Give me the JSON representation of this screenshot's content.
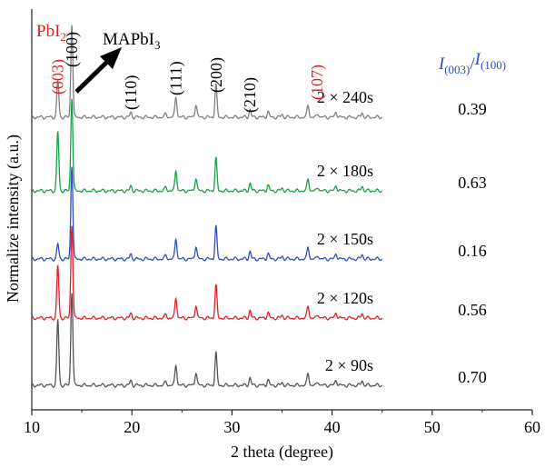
{
  "chart_data": {
    "type": "line",
    "xlabel": "2 theta (degree)",
    "ylabel": "Normalize intensity (a.u.)",
    "xlim": [
      10,
      60
    ],
    "xticks": [
      10,
      20,
      30,
      40,
      50,
      60
    ],
    "grid": false,
    "ratio_header": {
      "num": "I",
      "num_sub": "(003)",
      "den": "I",
      "den_sub": "(100)"
    },
    "pbi2_label": {
      "base": "PbI",
      "sub": "2"
    },
    "mapbi3_label": {
      "base": "MAPbI",
      "sub": "3"
    },
    "peak_labels": [
      {
        "label": "(003)",
        "x": 12.6,
        "color": "#e02020"
      },
      {
        "label": "(100)",
        "x": 14.0,
        "color": "#000000"
      },
      {
        "label": "(110)",
        "x": 19.9,
        "color": "#000000"
      },
      {
        "label": "(111)",
        "x": 24.4,
        "color": "#000000"
      },
      {
        "label": "(200)",
        "x": 28.4,
        "color": "#000000"
      },
      {
        "label": "(210)",
        "x": 31.8,
        "color": "#000000"
      },
      {
        "label": "(107)",
        "x": 38.5,
        "color": "#e02020"
      }
    ],
    "series": [
      {
        "name": "2 × 240s",
        "ratio": "0.39",
        "color": "#808080",
        "pbi2_peak": 0.39,
        "mapbi3_peak": 1.0
      },
      {
        "name": "2 × 180s",
        "ratio": "0.63",
        "color": "#1aa04a",
        "pbi2_peak": 0.63,
        "mapbi3_peak": 1.0
      },
      {
        "name": "2 × 150s",
        "ratio": "0.16",
        "color": "#2f4fc0",
        "pbi2_peak": 0.16,
        "mapbi3_peak": 1.0
      },
      {
        "name": "2 × 120s",
        "ratio": "0.56",
        "color": "#e0202a",
        "pbi2_peak": 0.56,
        "mapbi3_peak": 1.0
      },
      {
        "name": "2 × 90s",
        "ratio": "0.70",
        "color": "#555555",
        "pbi2_peak": 0.7,
        "mapbi3_peak": 1.0
      }
    ],
    "secondary_peaks": [
      {
        "x": 19.9,
        "h": 0.05
      },
      {
        "x": 23.4,
        "h": 0.04
      },
      {
        "x": 24.4,
        "h": 0.22
      },
      {
        "x": 26.4,
        "h": 0.14
      },
      {
        "x": 28.4,
        "h": 0.35
      },
      {
        "x": 31.8,
        "h": 0.08
      },
      {
        "x": 33.6,
        "h": 0.06
      },
      {
        "x": 35.0,
        "h": 0.03
      },
      {
        "x": 37.6,
        "h": 0.13
      },
      {
        "x": 38.6,
        "h": 0.04
      },
      {
        "x": 40.4,
        "h": 0.06
      },
      {
        "x": 43.0,
        "h": 0.05
      }
    ]
  }
}
